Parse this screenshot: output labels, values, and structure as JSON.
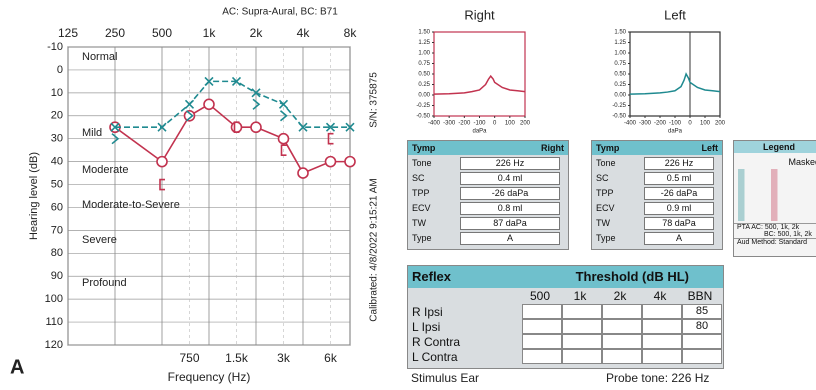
{
  "header": {
    "transducers": "AC: Supra-Aural, BC: B71",
    "serial": "S/N: 375875",
    "calibrated": "Calibrated: 4/8/2022 9:15:21 AM",
    "panel": "A"
  },
  "chart_data": [
    {
      "type": "line",
      "x_label": "Frequency (Hz)",
      "y_label": "Hearing level (dB)",
      "xscale": "log",
      "xlim": [
        125,
        8000
      ],
      "xticks": [
        125,
        250,
        500,
        {
          "value": 1000,
          "label": "1k"
        },
        {
          "value": 2000,
          "label": "2k"
        },
        {
          "value": 4000,
          "label": "4k"
        },
        {
          "value": 8000,
          "label": "8k"
        }
      ],
      "xticks_minor": [
        750,
        {
          "value": 1500,
          "label": "1.5k"
        },
        {
          "value": 3000,
          "label": "3k"
        },
        {
          "value": 6000,
          "label": "6k"
        }
      ],
      "ylim": [
        -10,
        120
      ],
      "y_inverted": true,
      "yticks": [
        -10,
        0,
        10,
        20,
        30,
        40,
        50,
        60,
        70,
        80,
        90,
        100,
        110,
        120
      ],
      "grid": true,
      "annotations": [
        "Normal",
        "Mild",
        "Moderate",
        "Moderate-to-Severe",
        "Severe",
        "Profound"
      ],
      "series": [
        {
          "color": "#c2334f",
          "marker": "o",
          "line": true,
          "x": [
            250,
            500,
            750,
            1000,
            1500,
            2000,
            3000,
            4000,
            6000,
            8000
          ],
          "values": [
            25,
            40,
            20,
            15,
            25,
            25,
            30,
            45,
            40,
            40
          ]
        },
        {
          "color": "#1f8a90",
          "marker": "x",
          "line": true,
          "x": [
            250,
            500,
            750,
            1000,
            1500,
            2000,
            3000,
            4000,
            6000,
            8000
          ],
          "values": [
            25,
            25,
            15,
            5,
            5,
            10,
            15,
            25,
            25,
            25
          ]
        },
        {
          "color": "#c2334f",
          "marker": "[",
          "line": false,
          "x": [
            500,
            1500,
            3000,
            6000
          ],
          "values": [
            50,
            25,
            35,
            30
          ]
        },
        {
          "color": "#1f8a90",
          "marker": ">",
          "line": false,
          "x": [
            250,
            750,
            2000,
            3000
          ],
          "values": [
            30,
            20,
            15,
            20
          ]
        }
      ]
    },
    {
      "type": "line",
      "title": "Right",
      "x_label": "daPa",
      "frame_color": "#c2334f",
      "zero_line": false,
      "xlim": [
        -400,
        200
      ],
      "xticks": [
        -400,
        -300,
        -200,
        -100,
        0,
        100,
        200
      ],
      "ylim": [
        -0.5,
        1.5
      ],
      "yticks": [
        {
          "value": -0.5,
          "label": "-0.50"
        },
        {
          "value": -0.25,
          "label": "-0.25"
        },
        {
          "value": 0,
          "label": "0.00"
        },
        {
          "value": 0.25,
          "label": "0.25"
        },
        {
          "value": 0.5,
          "label": "0.50"
        },
        {
          "value": 0.75,
          "label": "0.75"
        },
        {
          "value": 1,
          "label": "1.00"
        },
        {
          "value": 1.25,
          "label": "1.25"
        },
        {
          "value": 1.5,
          "label": "1.50"
        }
      ],
      "series": [
        {
          "color": "#c2334f",
          "x": [
            -400,
            -300,
            -200,
            -150,
            -100,
            -60,
            -40,
            -26,
            -10,
            0,
            50,
            100,
            150,
            200
          ],
          "values": [
            0.02,
            0.03,
            0.05,
            0.08,
            0.12,
            0.25,
            0.38,
            0.45,
            0.38,
            0.3,
            0.18,
            0.12,
            0.1,
            0.08
          ]
        }
      ]
    },
    {
      "type": "line",
      "title": "Left",
      "x_label": "daPa",
      "frame_color": "#333333",
      "zero_line": true,
      "xlim": [
        -400,
        200
      ],
      "xticks": [
        -400,
        -300,
        -200,
        -100,
        0,
        100,
        200
      ],
      "ylim": [
        -0.5,
        1.5
      ],
      "yticks": [
        {
          "value": -0.5,
          "label": "-0.50"
        },
        {
          "value": -0.25,
          "label": "-0.25"
        },
        {
          "value": 0,
          "label": "0.00"
        },
        {
          "value": 0.25,
          "label": "0.25"
        },
        {
          "value": 0.5,
          "label": "0.50"
        },
        {
          "value": 0.75,
          "label": "0.75"
        },
        {
          "value": 1,
          "label": "1.00"
        },
        {
          "value": 1.25,
          "label": "1.25"
        },
        {
          "value": 1.5,
          "label": "1.50"
        }
      ],
      "series": [
        {
          "color": "#1f8a90",
          "x": [
            -400,
            -300,
            -200,
            -150,
            -100,
            -60,
            -40,
            -26,
            -10,
            0,
            50,
            100,
            150,
            200
          ],
          "values": [
            0.02,
            0.03,
            0.05,
            0.07,
            0.1,
            0.2,
            0.35,
            0.5,
            0.4,
            0.3,
            0.18,
            0.12,
            0.1,
            0.08
          ]
        }
      ]
    }
  ],
  "tymp_tables": [
    {
      "title": "Tymp",
      "ear": "Right",
      "rows": [
        [
          "Tone",
          "226 Hz"
        ],
        [
          "SC",
          "0.4 ml"
        ],
        [
          "TPP",
          "-26 daPa"
        ],
        [
          "ECV",
          "0.8 ml"
        ],
        [
          "TW",
          "87 daPa"
        ],
        [
          "Type",
          "A"
        ]
      ]
    },
    {
      "title": "Tymp",
      "ear": "Left",
      "rows": [
        [
          "Tone",
          "226 Hz"
        ],
        [
          "SC",
          "0.5 ml"
        ],
        [
          "TPP",
          "-26 daPa"
        ],
        [
          "ECV",
          "0.9 ml"
        ],
        [
          "TW",
          "78 daPa"
        ],
        [
          "Type",
          "A"
        ]
      ]
    }
  ],
  "legend": {
    "title": "Legend",
    "masked": "Masked",
    "pta_ac": "PTA  AC: 500, 1k, 2k",
    "pta_bc": "BC: 500, 1k, 2k",
    "method": "Aud Method:  Standard"
  },
  "reflex": {
    "title": "Reflex",
    "subtitle": "Threshold (dB HL)",
    "columns": [
      "500",
      "1k",
      "2k",
      "4k",
      "BBN"
    ],
    "rows": [
      {
        "label": "R Ipsi",
        "bbn": 85
      },
      {
        "label": "L Ipsi",
        "bbn": 80
      },
      {
        "label": "R Contra"
      },
      {
        "label": "L Contra"
      }
    ]
  },
  "footer": {
    "stimulus": "Stimulus Ear",
    "probe": "Probe tone: 226 Hz"
  }
}
